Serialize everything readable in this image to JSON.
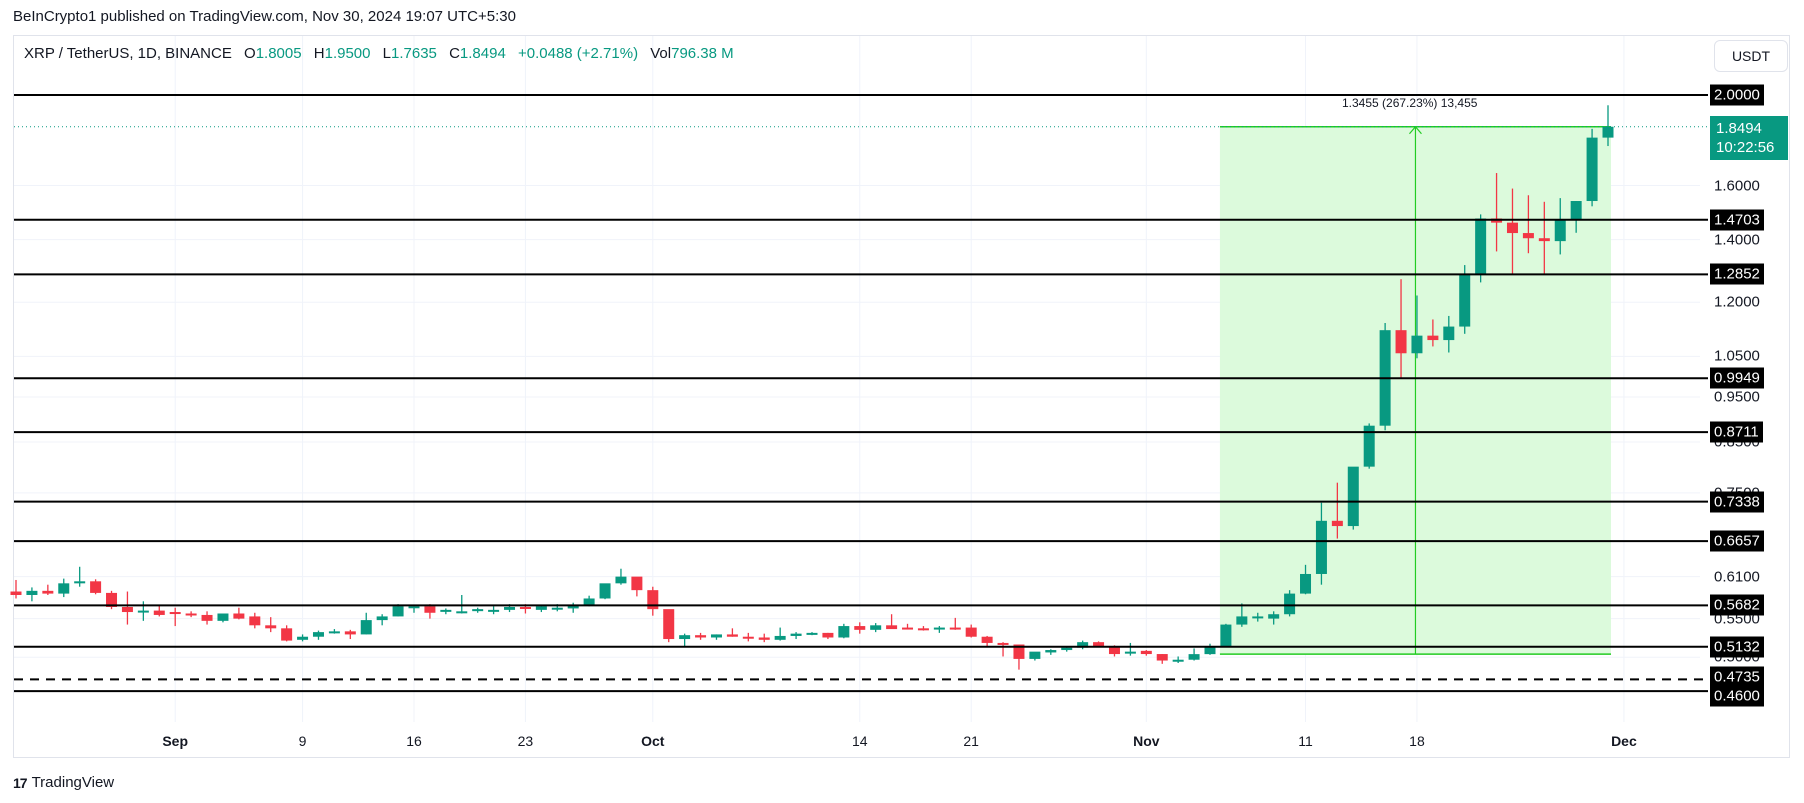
{
  "header": {
    "published": "BeInCrypto1 published on TradingView.com, Nov 30, 2024 19:07 UTC+5:30"
  },
  "legend": {
    "symbol": "XRP / TetherUS, 1D, BINANCE",
    "o_label": "O",
    "o": "1.8005",
    "h_label": "H",
    "h": "1.9500",
    "l_label": "L",
    "l": "1.7635",
    "c_label": "C",
    "c": "1.8494",
    "change": "+0.0488 (+2.71%)",
    "vol_label": "Vol",
    "vol": "796.38 M"
  },
  "axis": {
    "currency_button": "USDT",
    "current_price": "1.8494",
    "countdown": "10:22:56"
  },
  "measure_label": "1.3455 (267.23%) 13,455",
  "footer": {
    "brand": "TradingView",
    "logo": "17"
  },
  "colors": {
    "up": "#089981",
    "down": "#f23645",
    "range_fill": "#dcfadc",
    "range_line": "#22cc22",
    "level_line": "#000000"
  },
  "chart_data": {
    "type": "candlestick",
    "title": "XRP / TetherUS, 1D, BINANCE",
    "xlabel": "",
    "ylabel": "USDT",
    "yscale": "log",
    "ylim": [
      0.44,
      2.08
    ],
    "price_ticks": [
      "1.6000",
      "1.4000",
      "1.2000",
      "1.0500",
      "0.9500",
      "0.8500",
      "0.7500",
      "0.6100",
      "0.5500",
      "0.5000"
    ],
    "x_ticks": [
      {
        "label": "Sep",
        "bold": true,
        "index": 10
      },
      {
        "label": "9",
        "bold": false,
        "index": 18
      },
      {
        "label": "16",
        "bold": false,
        "index": 25
      },
      {
        "label": "23",
        "bold": false,
        "index": 32
      },
      {
        "label": "Oct",
        "bold": true,
        "index": 40
      },
      {
        "label": "14",
        "bold": false,
        "index": 53
      },
      {
        "label": "21",
        "bold": false,
        "index": 60
      },
      {
        "label": "Nov",
        "bold": true,
        "index": 71
      },
      {
        "label": "11",
        "bold": false,
        "index": 81
      },
      {
        "label": "18",
        "bold": false,
        "index": 88
      },
      {
        "label": "Dec",
        "bold": true,
        "index": 101
      }
    ],
    "horizontal_levels": [
      {
        "price": 2.0,
        "label": "2.0000",
        "style": "solid"
      },
      {
        "price": 1.4703,
        "label": "1.4703",
        "style": "solid"
      },
      {
        "price": 1.2852,
        "label": "1.2852",
        "style": "solid"
      },
      {
        "price": 0.9949,
        "label": "0.9949",
        "style": "solid"
      },
      {
        "price": 0.8711,
        "label": "0.8711",
        "style": "solid"
      },
      {
        "price": 0.7338,
        "label": "0.7338",
        "style": "solid"
      },
      {
        "price": 0.6657,
        "label": "0.6657",
        "style": "solid"
      },
      {
        "price": 0.5682,
        "label": "0.5682",
        "style": "solid"
      },
      {
        "price": 0.5132,
        "label": "0.5132",
        "style": "solid"
      },
      {
        "price": 0.4735,
        "label": "0.4735",
        "style": "dashed"
      },
      {
        "price": 0.46,
        "label": "0.4600",
        "style": "solid"
      }
    ],
    "current_price": 1.8494,
    "price_range_measure": {
      "from_price": 0.5039,
      "to_price": 1.8494,
      "start_index": 76,
      "end_index": 100,
      "change": 1.3455,
      "change_pct": 267.23,
      "ticks": 13455
    },
    "candles_ohlc": [
      [
        0.588,
        0.605,
        0.578,
        0.583
      ],
      [
        0.583,
        0.594,
        0.574,
        0.589
      ],
      [
        0.589,
        0.598,
        0.583,
        0.585
      ],
      [
        0.585,
        0.607,
        0.58,
        0.6
      ],
      [
        0.6,
        0.625,
        0.595,
        0.603
      ],
      [
        0.603,
        0.606,
        0.584,
        0.586
      ],
      [
        0.586,
        0.589,
        0.563,
        0.566
      ],
      [
        0.566,
        0.588,
        0.542,
        0.559
      ],
      [
        0.559,
        0.574,
        0.547,
        0.561
      ],
      [
        0.561,
        0.569,
        0.553,
        0.555
      ],
      [
        0.559,
        0.565,
        0.54,
        0.557
      ],
      [
        0.557,
        0.56,
        0.552,
        0.555
      ],
      [
        0.555,
        0.56,
        0.542,
        0.547
      ],
      [
        0.547,
        0.557,
        0.545,
        0.557
      ],
      [
        0.557,
        0.565,
        0.549,
        0.55
      ],
      [
        0.553,
        0.558,
        0.537,
        0.541
      ],
      [
        0.541,
        0.552,
        0.532,
        0.537
      ],
      [
        0.537,
        0.541,
        0.52,
        0.521
      ],
      [
        0.522,
        0.529,
        0.52,
        0.526
      ],
      [
        0.526,
        0.534,
        0.522,
        0.532
      ],
      [
        0.532,
        0.536,
        0.53,
        0.533
      ],
      [
        0.533,
        0.535,
        0.523,
        0.529
      ],
      [
        0.529,
        0.558,
        0.529,
        0.548
      ],
      [
        0.548,
        0.556,
        0.541,
        0.553
      ],
      [
        0.553,
        0.57,
        0.553,
        0.567
      ],
      [
        0.567,
        0.567,
        0.558,
        0.567
      ],
      [
        0.567,
        0.57,
        0.55,
        0.558
      ],
      [
        0.561,
        0.564,
        0.556,
        0.562
      ],
      [
        0.56,
        0.583,
        0.557,
        0.56
      ],
      [
        0.562,
        0.565,
        0.558,
        0.563
      ],
      [
        0.561,
        0.567,
        0.556,
        0.562
      ],
      [
        0.562,
        0.57,
        0.559,
        0.566
      ],
      [
        0.566,
        0.57,
        0.557,
        0.564
      ],
      [
        0.562,
        0.569,
        0.559,
        0.567
      ],
      [
        0.565,
        0.57,
        0.56,
        0.565
      ],
      [
        0.564,
        0.572,
        0.558,
        0.568
      ],
      [
        0.568,
        0.582,
        0.567,
        0.578
      ],
      [
        0.578,
        0.599,
        0.577,
        0.6
      ],
      [
        0.6,
        0.622,
        0.598,
        0.61
      ],
      [
        0.61,
        0.607,
        0.581,
        0.59
      ],
      [
        0.59,
        0.595,
        0.554,
        0.563
      ],
      [
        0.563,
        0.541,
        0.519,
        0.523
      ],
      [
        0.523,
        0.53,
        0.513,
        0.528
      ],
      [
        0.528,
        0.531,
        0.522,
        0.525
      ],
      [
        0.525,
        0.529,
        0.522,
        0.529
      ],
      [
        0.529,
        0.537,
        0.526,
        0.526
      ],
      [
        0.526,
        0.531,
        0.52,
        0.525
      ],
      [
        0.525,
        0.53,
        0.519,
        0.522
      ],
      [
        0.522,
        0.538,
        0.521,
        0.527
      ],
      [
        0.527,
        0.532,
        0.523,
        0.53
      ],
      [
        0.53,
        0.532,
        0.528,
        0.531
      ],
      [
        0.531,
        0.531,
        0.523,
        0.525
      ],
      [
        0.525,
        0.543,
        0.524,
        0.54
      ],
      [
        0.54,
        0.545,
        0.53,
        0.535
      ],
      [
        0.535,
        0.544,
        0.532,
        0.541
      ],
      [
        0.541,
        0.556,
        0.54,
        0.536
      ],
      [
        0.538,
        0.543,
        0.536,
        0.536
      ],
      [
        0.537,
        0.54,
        0.534,
        0.535
      ],
      [
        0.536,
        0.54,
        0.531,
        0.538
      ],
      [
        0.538,
        0.551,
        0.535,
        0.536
      ],
      [
        0.538,
        0.542,
        0.525,
        0.526
      ],
      [
        0.526,
        0.527,
        0.514,
        0.518
      ],
      [
        0.518,
        0.519,
        0.501,
        0.516
      ],
      [
        0.516,
        0.502,
        0.485,
        0.498
      ],
      [
        0.498,
        0.506,
        0.496,
        0.507
      ],
      [
        0.506,
        0.51,
        0.503,
        0.509
      ],
      [
        0.509,
        0.513,
        0.507,
        0.512
      ],
      [
        0.512,
        0.521,
        0.51,
        0.519
      ],
      [
        0.519,
        0.52,
        0.513,
        0.514
      ],
      [
        0.514,
        0.515,
        0.501,
        0.504
      ],
      [
        0.505,
        0.518,
        0.502,
        0.507
      ],
      [
        0.508,
        0.509,
        0.502,
        0.504
      ],
      [
        0.504,
        0.504,
        0.492,
        0.496
      ],
      [
        0.496,
        0.501,
        0.493,
        0.497
      ],
      [
        0.497,
        0.511,
        0.496,
        0.5039
      ],
      [
        0.5039,
        0.517,
        0.503,
        0.514
      ],
      [
        0.514,
        0.543,
        0.513,
        0.542
      ],
      [
        0.542,
        0.571,
        0.539,
        0.553
      ],
      [
        0.553,
        0.558,
        0.546,
        0.553
      ],
      [
        0.55,
        0.56,
        0.542,
        0.556
      ],
      [
        0.556,
        0.59,
        0.553,
        0.585
      ],
      [
        0.585,
        0.628,
        0.584,
        0.614
      ],
      [
        0.614,
        0.732,
        0.598,
        0.7
      ],
      [
        0.7,
        0.769,
        0.67,
        0.691
      ],
      [
        0.691,
        0.79,
        0.685,
        0.8
      ],
      [
        0.8,
        0.89,
        0.796,
        0.885
      ],
      [
        0.885,
        1.14,
        0.875,
        1.12
      ],
      [
        1.12,
        1.27,
        0.995,
        1.058
      ],
      [
        1.058,
        1.22,
        1.045,
        1.105
      ],
      [
        1.105,
        1.15,
        1.076,
        1.093
      ],
      [
        1.093,
        1.16,
        1.06,
        1.13
      ],
      [
        1.13,
        1.315,
        1.11,
        1.285
      ],
      [
        1.285,
        1.49,
        1.26,
        1.475
      ],
      [
        1.475,
        1.65,
        1.36,
        1.46
      ],
      [
        1.46,
        1.588,
        1.288,
        1.423
      ],
      [
        1.423,
        1.562,
        1.354,
        1.405
      ],
      [
        1.405,
        1.537,
        1.288,
        1.395
      ],
      [
        1.395,
        1.551,
        1.35,
        1.471
      ],
      [
        1.471,
        1.54,
        1.424,
        1.54
      ],
      [
        1.54,
        1.84,
        1.52,
        1.8005
      ],
      [
        1.8005,
        1.95,
        1.7635,
        1.8494
      ]
    ]
  }
}
